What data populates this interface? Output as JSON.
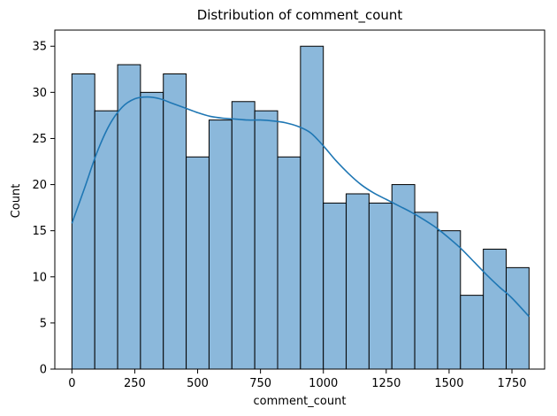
{
  "chart_data": {
    "type": "bar",
    "title": "Distribution of comment_count",
    "xlabel": "comment_count",
    "ylabel": "Count",
    "xlim": [
      -68,
      1880
    ],
    "ylim": [
      0,
      36.75
    ],
    "x_ticks": [
      0,
      250,
      500,
      750,
      1000,
      1250,
      1500,
      1750
    ],
    "y_ticks": [
      0,
      5,
      10,
      15,
      20,
      25,
      30,
      35
    ],
    "bins": [
      {
        "start": 0,
        "end": 90.9,
        "count": 32
      },
      {
        "start": 90.9,
        "end": 181.8,
        "count": 28
      },
      {
        "start": 181.8,
        "end": 272.7,
        "count": 33
      },
      {
        "start": 272.7,
        "end": 363.6,
        "count": 30
      },
      {
        "start": 363.6,
        "end": 454.5,
        "count": 32
      },
      {
        "start": 454.5,
        "end": 545.4,
        "count": 23
      },
      {
        "start": 545.4,
        "end": 636.3,
        "count": 27
      },
      {
        "start": 636.3,
        "end": 727.2,
        "count": 29
      },
      {
        "start": 727.2,
        "end": 818.1,
        "count": 28
      },
      {
        "start": 818.1,
        "end": 909.0,
        "count": 23
      },
      {
        "start": 909.0,
        "end": 999.9,
        "count": 35
      },
      {
        "start": 999.9,
        "end": 1090.8,
        "count": 18
      },
      {
        "start": 1090.8,
        "end": 1181.7,
        "count": 19
      },
      {
        "start": 1181.7,
        "end": 1272.6,
        "count": 18
      },
      {
        "start": 1272.6,
        "end": 1363.5,
        "count": 20
      },
      {
        "start": 1363.5,
        "end": 1454.4,
        "count": 17
      },
      {
        "start": 1454.4,
        "end": 1545.3,
        "count": 15
      },
      {
        "start": 1545.3,
        "end": 1636.2,
        "count": 8
      },
      {
        "start": 1636.2,
        "end": 1727.1,
        "count": 13
      },
      {
        "start": 1727.1,
        "end": 1818.0,
        "count": 11
      }
    ],
    "kde": {
      "x": [
        0,
        50,
        100,
        150,
        200,
        250,
        300,
        350,
        400,
        450,
        500,
        550,
        600,
        650,
        700,
        750,
        800,
        850,
        900,
        950,
        1000,
        1050,
        1100,
        1150,
        1200,
        1250,
        1300,
        1350,
        1400,
        1450,
        1500,
        1550,
        1600,
        1650,
        1700,
        1750,
        1818
      ],
      "y": [
        15.8,
        19.6,
        23.5,
        26.5,
        28.4,
        29.3,
        29.5,
        29.3,
        28.8,
        28.3,
        27.8,
        27.4,
        27.2,
        27.1,
        27.0,
        27.0,
        26.9,
        26.7,
        26.3,
        25.6,
        24.2,
        22.6,
        21.2,
        20.0,
        19.1,
        18.4,
        17.7,
        17.0,
        16.2,
        15.3,
        14.2,
        13.0,
        11.6,
        10.2,
        8.9,
        7.7,
        5.7
      ]
    },
    "colors": {
      "bar_fill": "#8bb8db",
      "bar_edge": "#000000",
      "kde_line": "#1f77b4",
      "axis": "#000000"
    },
    "grid": false,
    "legend": "none"
  }
}
